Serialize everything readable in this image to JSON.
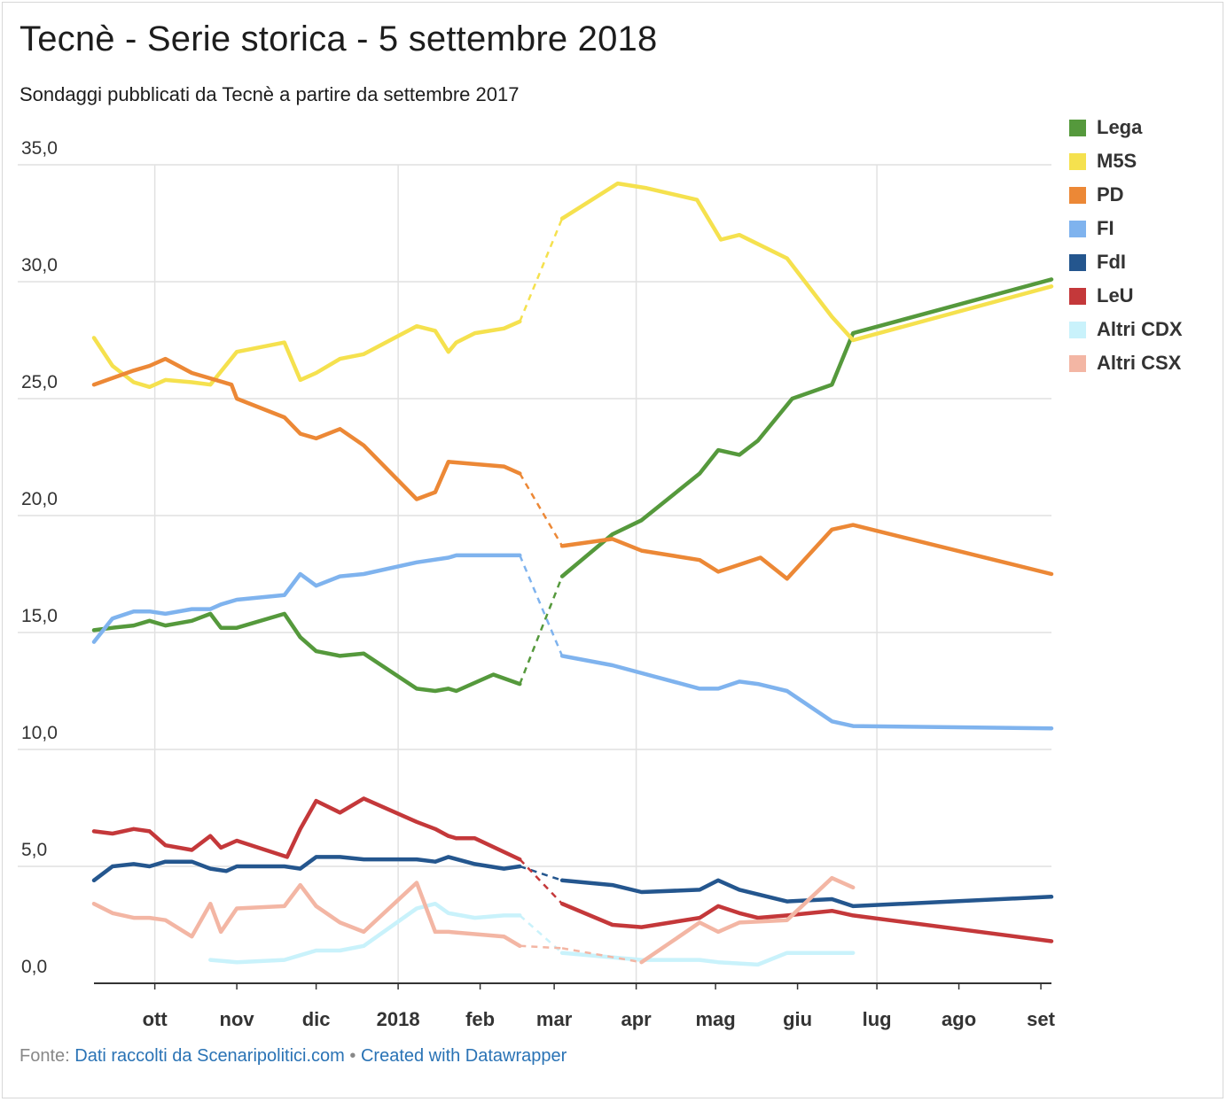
{
  "title": "Tecnè - Serie storica - 5 settembre 2018",
  "subtitle": "Sondaggi pubblicati da Tecnè a partire da settembre 2017",
  "footer": {
    "source_label": "Fonte:",
    "source_link": "Dati raccolti da Scenaripolitici.com",
    "separator": "•",
    "credit_link": "Created with Datawrapper"
  },
  "chart_data": {
    "type": "line",
    "title": "Tecnè - Serie storica - 5 settembre 2018",
    "subtitle": "Sondaggi pubblicati da Tecnè a partire da settembre 2017",
    "xlabel": "",
    "ylabel": "",
    "ylim": [
      0,
      35
    ],
    "xlim": [
      "2017-09-08",
      "2018-09-05"
    ],
    "y_ticks": [
      "0,0",
      "5,0",
      "10,0",
      "15,0",
      "20,0",
      "25,0",
      "30,0",
      "35,0"
    ],
    "x_ticks": [
      {
        "label": "ott",
        "date": "2017-10-01"
      },
      {
        "label": "nov",
        "date": "2017-11-01"
      },
      {
        "label": "dic",
        "date": "2017-12-01"
      },
      {
        "label": "2018",
        "date": "2018-01-01"
      },
      {
        "label": "feb",
        "date": "2018-02-01"
      },
      {
        "label": "mar",
        "date": "2018-03-01"
      },
      {
        "label": "apr",
        "date": "2018-04-01"
      },
      {
        "label": "mag",
        "date": "2018-05-01"
      },
      {
        "label": "giu",
        "date": "2018-06-01"
      },
      {
        "label": "lug",
        "date": "2018-07-01"
      },
      {
        "label": "ago",
        "date": "2018-08-01"
      },
      {
        "label": "set",
        "date": "2018-09-01"
      }
    ],
    "grid": true,
    "legend_position": "right",
    "election_gap": [
      "2018-02-16",
      "2018-03-04"
    ],
    "series": [
      {
        "name": "Lega",
        "color": "#55993c",
        "points": [
          [
            "2017-09-08",
            15.1
          ],
          [
            "2017-09-15",
            15.2
          ],
          [
            "2017-09-23",
            15.3
          ],
          [
            "2017-09-29",
            15.5
          ],
          [
            "2017-10-05",
            15.3
          ],
          [
            "2017-10-15",
            15.5
          ],
          [
            "2017-10-22",
            15.8
          ],
          [
            "2017-10-26",
            15.2
          ],
          [
            "2017-11-01",
            15.2
          ],
          [
            "2017-11-19",
            15.8
          ],
          [
            "2017-11-25",
            14.8
          ],
          [
            "2017-12-01",
            14.2
          ],
          [
            "2017-12-10",
            14.0
          ],
          [
            "2017-12-19",
            14.1
          ],
          [
            "2018-01-08",
            12.6
          ],
          [
            "2018-01-15",
            12.5
          ],
          [
            "2018-01-20",
            12.6
          ],
          [
            "2018-01-23",
            12.5
          ],
          [
            "2018-02-06",
            13.2
          ],
          [
            "2018-02-16",
            12.8
          ],
          [
            "2018-03-04",
            17.4
          ],
          [
            "2018-03-23",
            19.2
          ],
          [
            "2018-04-03",
            19.8
          ],
          [
            "2018-04-25",
            21.8
          ],
          [
            "2018-05-02",
            22.8
          ],
          [
            "2018-05-10",
            22.6
          ],
          [
            "2018-05-17",
            23.2
          ],
          [
            "2018-05-30",
            25.0
          ],
          [
            "2018-06-14",
            25.6
          ],
          [
            "2018-06-22",
            27.8
          ],
          [
            "2018-09-05",
            30.1
          ]
        ]
      },
      {
        "name": "M5S",
        "color": "#f5e14e",
        "points": [
          [
            "2017-09-08",
            27.6
          ],
          [
            "2017-09-15",
            26.4
          ],
          [
            "2017-09-23",
            25.7
          ],
          [
            "2017-09-29",
            25.5
          ],
          [
            "2017-10-05",
            25.8
          ],
          [
            "2017-10-15",
            25.7
          ],
          [
            "2017-10-22",
            25.6
          ],
          [
            "2017-11-01",
            27.0
          ],
          [
            "2017-11-19",
            27.4
          ],
          [
            "2017-11-25",
            25.8
          ],
          [
            "2017-12-01",
            26.1
          ],
          [
            "2017-12-10",
            26.7
          ],
          [
            "2017-12-19",
            26.9
          ],
          [
            "2018-01-08",
            28.1
          ],
          [
            "2018-01-15",
            27.9
          ],
          [
            "2018-01-20",
            27.0
          ],
          [
            "2018-01-23",
            27.4
          ],
          [
            "2018-01-30",
            27.8
          ],
          [
            "2018-02-10",
            28.0
          ],
          [
            "2018-02-16",
            28.3
          ],
          [
            "2018-03-04",
            32.7
          ],
          [
            "2018-03-25",
            34.2
          ],
          [
            "2018-04-05",
            34.0
          ],
          [
            "2018-04-24",
            33.5
          ],
          [
            "2018-05-03",
            31.8
          ],
          [
            "2018-05-10",
            32.0
          ],
          [
            "2018-05-28",
            31.0
          ],
          [
            "2018-06-14",
            28.5
          ],
          [
            "2018-06-22",
            27.5
          ],
          [
            "2018-09-05",
            29.8
          ]
        ]
      },
      {
        "name": "PD",
        "color": "#ec8836",
        "points": [
          [
            "2017-09-08",
            25.6
          ],
          [
            "2017-09-23",
            26.2
          ],
          [
            "2017-09-29",
            26.4
          ],
          [
            "2017-10-05",
            26.7
          ],
          [
            "2017-10-15",
            26.1
          ],
          [
            "2017-10-30",
            25.6
          ],
          [
            "2017-11-01",
            25.0
          ],
          [
            "2017-11-19",
            24.2
          ],
          [
            "2017-11-25",
            23.5
          ],
          [
            "2017-12-01",
            23.3
          ],
          [
            "2017-12-10",
            23.7
          ],
          [
            "2017-12-19",
            23.0
          ],
          [
            "2018-01-08",
            20.7
          ],
          [
            "2018-01-15",
            21.0
          ],
          [
            "2018-01-20",
            22.3
          ],
          [
            "2018-01-30",
            22.2
          ],
          [
            "2018-02-10",
            22.1
          ],
          [
            "2018-02-16",
            21.8
          ],
          [
            "2018-03-04",
            18.7
          ],
          [
            "2018-03-23",
            19.0
          ],
          [
            "2018-04-03",
            18.5
          ],
          [
            "2018-04-25",
            18.1
          ],
          [
            "2018-05-02",
            17.6
          ],
          [
            "2018-05-18",
            18.2
          ],
          [
            "2018-05-28",
            17.3
          ],
          [
            "2018-06-14",
            19.4
          ],
          [
            "2018-06-22",
            19.6
          ],
          [
            "2018-09-05",
            17.5
          ]
        ]
      },
      {
        "name": "FI",
        "color": "#7fb3ee",
        "points": [
          [
            "2017-09-08",
            14.6
          ],
          [
            "2017-09-15",
            15.6
          ],
          [
            "2017-09-23",
            15.9
          ],
          [
            "2017-09-29",
            15.9
          ],
          [
            "2017-10-05",
            15.8
          ],
          [
            "2017-10-15",
            16.0
          ],
          [
            "2017-10-22",
            16.0
          ],
          [
            "2017-10-26",
            16.2
          ],
          [
            "2017-11-01",
            16.4
          ],
          [
            "2017-11-19",
            16.6
          ],
          [
            "2017-11-25",
            17.5
          ],
          [
            "2017-12-01",
            17.0
          ],
          [
            "2017-12-10",
            17.4
          ],
          [
            "2017-12-19",
            17.5
          ],
          [
            "2018-01-08",
            18.0
          ],
          [
            "2018-01-20",
            18.2
          ],
          [
            "2018-01-23",
            18.3
          ],
          [
            "2018-02-16",
            18.3
          ],
          [
            "2018-03-04",
            14.0
          ],
          [
            "2018-03-23",
            13.6
          ],
          [
            "2018-04-25",
            12.6
          ],
          [
            "2018-05-02",
            12.6
          ],
          [
            "2018-05-10",
            12.9
          ],
          [
            "2018-05-17",
            12.8
          ],
          [
            "2018-05-28",
            12.5
          ],
          [
            "2018-06-14",
            11.2
          ],
          [
            "2018-06-22",
            11.0
          ],
          [
            "2018-09-05",
            10.9
          ]
        ]
      },
      {
        "name": "FdI",
        "color": "#24568e",
        "points": [
          [
            "2017-09-08",
            4.4
          ],
          [
            "2017-09-15",
            5.0
          ],
          [
            "2017-09-23",
            5.1
          ],
          [
            "2017-09-29",
            5.0
          ],
          [
            "2017-10-05",
            5.2
          ],
          [
            "2017-10-15",
            5.2
          ],
          [
            "2017-10-22",
            4.9
          ],
          [
            "2017-10-28",
            4.8
          ],
          [
            "2017-11-01",
            5.0
          ],
          [
            "2017-11-19",
            5.0
          ],
          [
            "2017-11-25",
            4.9
          ],
          [
            "2017-12-01",
            5.4
          ],
          [
            "2017-12-10",
            5.4
          ],
          [
            "2017-12-19",
            5.3
          ],
          [
            "2018-01-08",
            5.3
          ],
          [
            "2018-01-15",
            5.2
          ],
          [
            "2018-01-20",
            5.4
          ],
          [
            "2018-01-30",
            5.1
          ],
          [
            "2018-02-10",
            4.9
          ],
          [
            "2018-02-16",
            5.0
          ],
          [
            "2018-03-04",
            4.4
          ],
          [
            "2018-03-23",
            4.2
          ],
          [
            "2018-04-03",
            3.9
          ],
          [
            "2018-04-25",
            4.0
          ],
          [
            "2018-05-02",
            4.4
          ],
          [
            "2018-05-10",
            4.0
          ],
          [
            "2018-05-28",
            3.5
          ],
          [
            "2018-06-14",
            3.6
          ],
          [
            "2018-06-22",
            3.3
          ],
          [
            "2018-09-05",
            3.7
          ]
        ]
      },
      {
        "name": "LeU",
        "color": "#c4383a",
        "points": [
          [
            "2017-09-08",
            6.5
          ],
          [
            "2017-09-15",
            6.4
          ],
          [
            "2017-09-23",
            6.6
          ],
          [
            "2017-09-29",
            6.5
          ],
          [
            "2017-10-05",
            5.9
          ],
          [
            "2017-10-15",
            5.7
          ],
          [
            "2017-10-22",
            6.3
          ],
          [
            "2017-10-26",
            5.8
          ],
          [
            "2017-11-01",
            6.1
          ],
          [
            "2017-11-20",
            5.4
          ],
          [
            "2017-11-25",
            6.6
          ],
          [
            "2017-12-01",
            7.8
          ],
          [
            "2017-12-10",
            7.3
          ],
          [
            "2017-12-19",
            7.9
          ],
          [
            "2018-01-08",
            6.9
          ],
          [
            "2018-01-15",
            6.6
          ],
          [
            "2018-01-20",
            6.3
          ],
          [
            "2018-01-23",
            6.2
          ],
          [
            "2018-01-30",
            6.2
          ],
          [
            "2018-02-16",
            5.3
          ],
          [
            "2018-03-04",
            3.4
          ],
          [
            "2018-03-23",
            2.5
          ],
          [
            "2018-04-03",
            2.4
          ],
          [
            "2018-04-25",
            2.8
          ],
          [
            "2018-05-02",
            3.3
          ],
          [
            "2018-05-10",
            3.0
          ],
          [
            "2018-05-17",
            2.8
          ],
          [
            "2018-05-28",
            2.9
          ],
          [
            "2018-06-14",
            3.1
          ],
          [
            "2018-06-22",
            2.9
          ],
          [
            "2018-09-05",
            1.8
          ]
        ]
      },
      {
        "name": "Altri CDX",
        "color": "#c9f2fb",
        "points": [
          [
            "2017-10-22",
            1.0
          ],
          [
            "2017-11-01",
            0.9
          ],
          [
            "2017-11-19",
            1.0
          ],
          [
            "2017-11-25",
            1.2
          ],
          [
            "2017-12-01",
            1.4
          ],
          [
            "2017-12-10",
            1.4
          ],
          [
            "2017-12-19",
            1.6
          ],
          [
            "2018-01-08",
            3.2
          ],
          [
            "2018-01-15",
            3.4
          ],
          [
            "2018-01-20",
            3.0
          ],
          [
            "2018-01-30",
            2.8
          ],
          [
            "2018-02-10",
            2.9
          ],
          [
            "2018-02-16",
            2.9
          ],
          [
            "2018-03-04",
            1.3
          ],
          [
            "2018-04-03",
            1.0
          ],
          [
            "2018-04-25",
            1.0
          ],
          [
            "2018-05-02",
            0.9
          ],
          [
            "2018-05-17",
            0.8
          ],
          [
            "2018-05-28",
            1.3
          ],
          [
            "2018-06-22",
            1.3
          ]
        ]
      },
      {
        "name": "Altri CSX",
        "color": "#f3b6a4",
        "points": [
          [
            "2017-09-08",
            3.4
          ],
          [
            "2017-09-15",
            3.0
          ],
          [
            "2017-09-23",
            2.8
          ],
          [
            "2017-09-29",
            2.8
          ],
          [
            "2017-10-05",
            2.7
          ],
          [
            "2017-10-15",
            2.0
          ],
          [
            "2017-10-22",
            3.4
          ],
          [
            "2017-10-26",
            2.2
          ],
          [
            "2017-11-01",
            3.2
          ],
          [
            "2017-11-19",
            3.3
          ],
          [
            "2017-11-25",
            4.2
          ],
          [
            "2017-12-01",
            3.3
          ],
          [
            "2017-12-10",
            2.6
          ],
          [
            "2017-12-19",
            2.2
          ],
          [
            "2018-01-08",
            4.3
          ],
          [
            "2018-01-15",
            2.2
          ],
          [
            "2018-01-20",
            2.2
          ],
          [
            "2018-02-10",
            2.0
          ],
          [
            "2018-02-16",
            1.6
          ],
          [
            "2018-03-04",
            1.5
          ],
          [
            "2018-04-03",
            0.9
          ],
          [
            "2018-04-25",
            2.6
          ],
          [
            "2018-05-02",
            2.2
          ],
          [
            "2018-05-10",
            2.6
          ],
          [
            "2018-05-28",
            2.7
          ],
          [
            "2018-06-14",
            4.5
          ],
          [
            "2018-06-22",
            4.1
          ]
        ]
      }
    ]
  }
}
